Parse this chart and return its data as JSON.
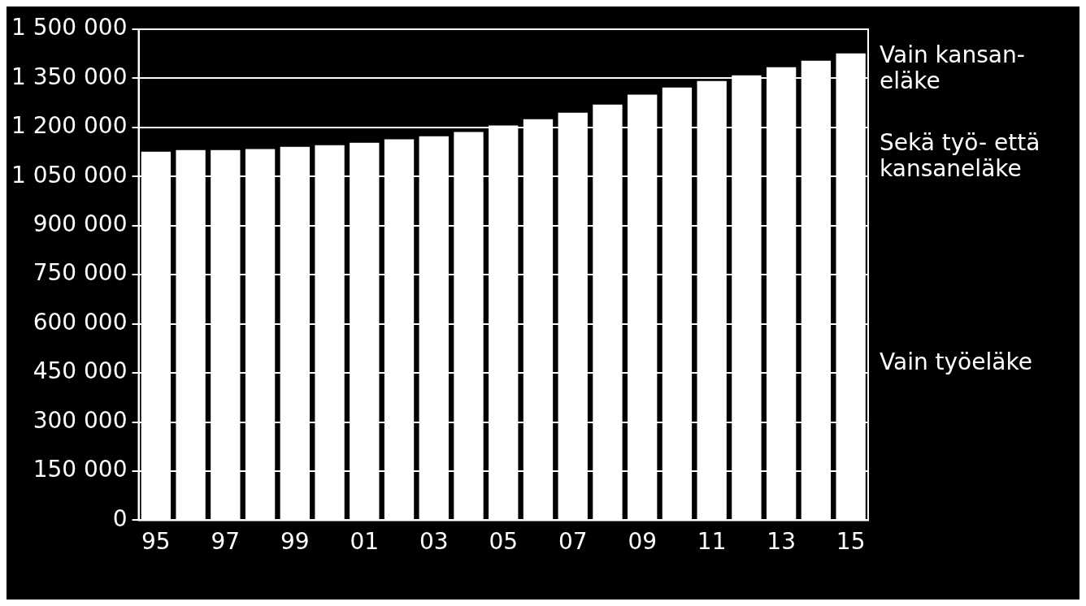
{
  "chart_data": {
    "type": "bar",
    "categories": [
      "95",
      null,
      "97",
      null,
      "99",
      null,
      "01",
      null,
      "03",
      null,
      "05",
      null,
      "07",
      null,
      "09",
      null,
      "11",
      null,
      "13",
      null,
      "15"
    ],
    "values": [
      1126000,
      1131000,
      1131000,
      1134000,
      1141000,
      1146000,
      1153000,
      1164000,
      1173000,
      1186000,
      1206000,
      1225000,
      1245000,
      1270000,
      1300000,
      1322000,
      1342000,
      1359000,
      1384000,
      1404000,
      1426000
    ],
    "color": "#ffffff",
    "ylim": [
      0,
      1500000
    ],
    "yticks": [
      0,
      {
        "value": 150000,
        "label": "150 000"
      },
      {
        "value": 300000,
        "label": "300 000"
      },
      {
        "value": 450000,
        "label": "450 000"
      },
      {
        "value": 600000,
        "label": "600 000"
      },
      {
        "value": 750000,
        "label": "750 000"
      },
      {
        "value": 900000,
        "label": "900 000"
      },
      {
        "value": 1050000,
        "label": "1 050 000"
      },
      {
        "value": 1200000,
        "label": "1 200 000"
      },
      {
        "value": 1350000,
        "label": "1 350 000"
      },
      {
        "value": 1500000,
        "label": "1 500 000"
      }
    ],
    "grid": "y",
    "annotations": [
      "Vain kansan-\neläke",
      "Sekä työ- että\nkansaneläke",
      "Vain työeläke"
    ]
  }
}
